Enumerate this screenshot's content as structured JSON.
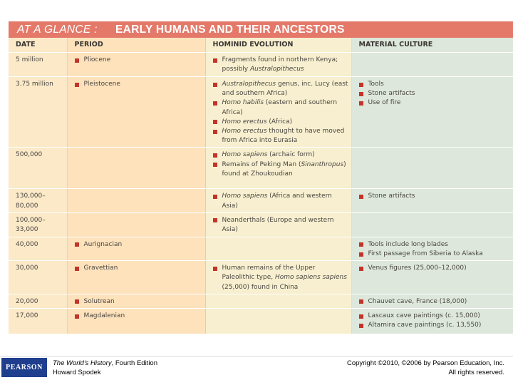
{
  "title": {
    "prefix": "AT A GLANCE :",
    "main": "EARLY HUMANS AND THEIR ANCESTORS"
  },
  "headers": {
    "date": "DATE",
    "period": "PERIOD",
    "hominid": "HOMINID EVOLUTION",
    "material": "MATERIAL CULTURE"
  },
  "rows": [
    {
      "date": "5 million",
      "period": [
        "Pliocene"
      ],
      "hominid": [
        "Fragments found in northern Kenya; possibly Australopithecus"
      ],
      "material": []
    },
    {
      "date": "3.75 million",
      "period": [
        "Pleistocene"
      ],
      "hominid": [
        "Australopithecus genus, inc. Lucy (east and southern Africa)",
        "Homo habilis (eastern and southern Africa)",
        "Homo erectus (Africa)",
        "Homo erectus thought to have moved from Africa into Eurasia"
      ],
      "material": [
        "Tools",
        "Stone artifacts",
        "Use of fire"
      ]
    },
    {
      "date": "500,000",
      "period": [],
      "hominid": [
        "Homo sapiens (archaic form)",
        "Remains of Peking Man (Sinanthropus) found at Zhoukoudian"
      ],
      "material": []
    },
    {
      "date": "130,000–80,000",
      "period": [],
      "hominid": [
        "Homo sapiens (Africa and western Asia)"
      ],
      "material": [
        "Stone artifacts"
      ]
    },
    {
      "date": "100,000–33,000",
      "period": [],
      "hominid": [
        "Neanderthals (Europe and western Asia)"
      ],
      "material": []
    },
    {
      "date": "40,000",
      "period": [
        "Aurignacian"
      ],
      "hominid": [],
      "material": [
        "Tools include long blades",
        "First passage from Siberia to Alaska"
      ]
    },
    {
      "date": "30,000",
      "period": [
        "Gravettian"
      ],
      "hominid": [
        "Human remains of the Upper Paleolithic type, Homo sapiens sapiens (25,000) found in China"
      ],
      "material": [
        "Venus figures (25,000–12,000)"
      ]
    },
    {
      "date": "20,000",
      "period": [
        "Solutrean"
      ],
      "hominid": [],
      "material": [
        "Chauvet cave, France (18,000)"
      ]
    },
    {
      "date": "17,000",
      "period": [
        "Magdalenian"
      ],
      "hominid": [],
      "material": [
        "Lascaux cave paintings (c. 15,000)",
        "Altamira cave paintings (c. 13,550)"
      ]
    }
  ],
  "footer": {
    "logo": "PEARSON",
    "book_title": "The World's History",
    "edition": ", Fourth Edition",
    "author": "Howard Spodek",
    "copyright": "Copyright ©2010, ©2006 by Pearson Education, Inc.",
    "rights": "All rights reserved."
  },
  "colors": {
    "title_bar": "#e4796a",
    "bullet": "#c2342b",
    "date_col": "#fbe9c8",
    "period_col": "#fde2bc",
    "hominid_col": "#f7efcf",
    "material_col": "#dde7db",
    "logo_bg": "#1f3e8e"
  }
}
